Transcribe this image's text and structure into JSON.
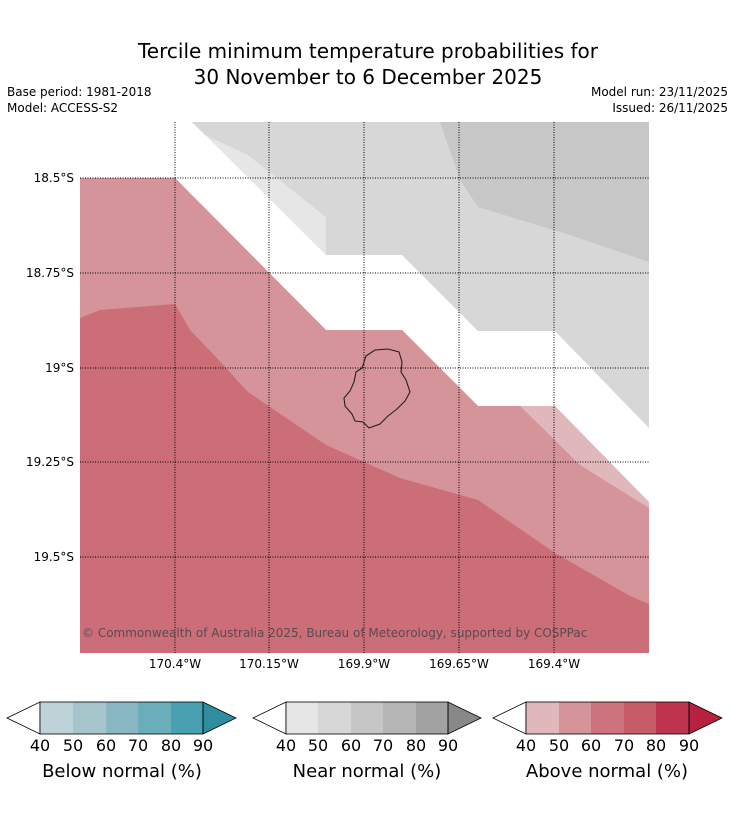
{
  "title": {
    "line1": "Tercile minimum temperature probabilities for",
    "line2": "30 November to 6 December 2025"
  },
  "meta": {
    "base_period": "Base period: 1981-2018",
    "model": "Model: ACCESS-S2",
    "model_run": "Model run: 23/11/2025",
    "issued": "Issued: 26/11/2025"
  },
  "axes": {
    "lat_labels": [
      "18.5°S",
      "18.75°S",
      "19°S",
      "19.25°S",
      "19.5°S"
    ],
    "lon_labels": [
      "170.4°W",
      "170.15°W",
      "169.9°W",
      "169.65°W",
      "169.4°W"
    ]
  },
  "copyright": "© Commonwealth of Australia 2025, Bureau of Meteorology, supported by COSPPac",
  "colorbars": [
    {
      "name": "below",
      "label": "Below normal (%)",
      "ticks": [
        "40",
        "50",
        "60",
        "70",
        "80",
        "90"
      ],
      "colors": [
        "#bdd3d8",
        "#a5c5ca",
        "#88b6c1",
        "#6aaebb",
        "#48a0b0",
        "#2e8ea0"
      ]
    },
    {
      "name": "near",
      "label": "Near normal (%)",
      "ticks": [
        "40",
        "50",
        "60",
        "70",
        "80",
        "90"
      ],
      "colors": [
        "#e6e6e6",
        "#d7d7d7",
        "#c6c6c6",
        "#b5b5b5",
        "#a2a2a2",
        "#888888"
      ]
    },
    {
      "name": "above",
      "label": "Above normal (%)",
      "ticks": [
        "40",
        "50",
        "60",
        "70",
        "80",
        "90"
      ],
      "colors": [
        "#e0b7bb",
        "#d5939a",
        "#cc737d",
        "#c55c68",
        "#bf354f",
        "#b82040"
      ]
    }
  ]
}
